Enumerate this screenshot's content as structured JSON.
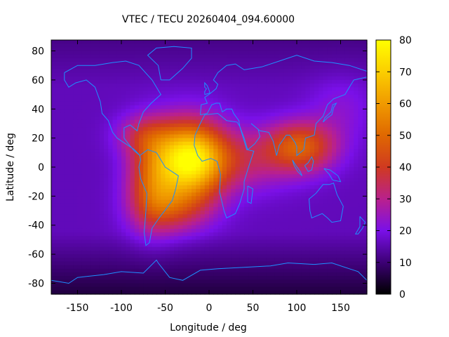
{
  "chart_data": {
    "type": "heatmap",
    "title": "VTEC / TECU 20260404_094.60000",
    "xlabel": "Longitude / deg",
    "ylabel": "Latitude / deg",
    "xlim": [
      -180,
      180
    ],
    "ylim": [
      -87.5,
      87.5
    ],
    "x_ticks": [
      -150,
      -100,
      -50,
      0,
      50,
      100,
      150
    ],
    "y_ticks": [
      -80,
      -60,
      -40,
      -20,
      0,
      20,
      40,
      60,
      80
    ],
    "colorbar": {
      "min": 0,
      "max": 80,
      "ticks": [
        0,
        10,
        20,
        30,
        40,
        50,
        60,
        70,
        80
      ],
      "palette": "black-purple-red-yellow (gnuplot pm3d)"
    },
    "overlay": "coastlines",
    "coastline_color": "#1e90ff",
    "field_features": [
      {
        "name": "equatorial-peak",
        "lon": -20,
        "lat": 5,
        "value": 78
      },
      {
        "name": "south-american-crest",
        "lon": -60,
        "lat": -5,
        "value": 55
      },
      {
        "name": "asian-lobe",
        "lon": 110,
        "lat": 15,
        "value": 48
      },
      {
        "name": "background-min",
        "lon": -110,
        "lat": -70,
        "value": 5
      }
    ]
  }
}
